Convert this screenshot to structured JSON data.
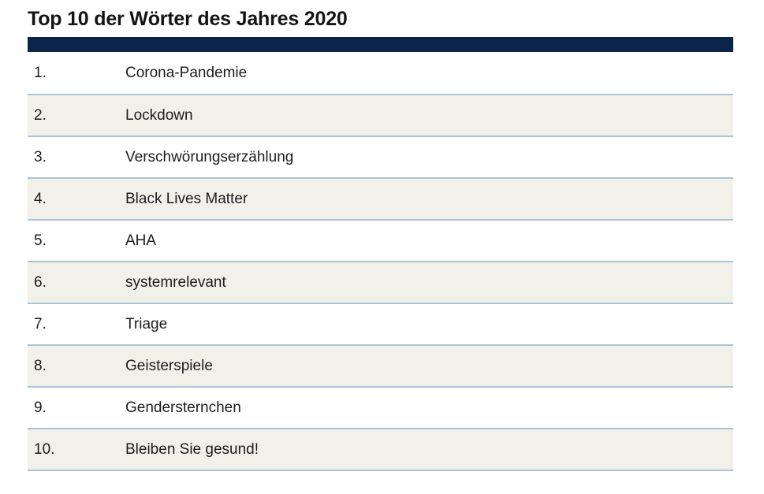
{
  "chart_data": {
    "type": "table",
    "title": "Top 10 der Wörter des Jahres 2020",
    "rows": [
      {
        "rank": "1.",
        "word": "Corona-Pandemie"
      },
      {
        "rank": "2.",
        "word": "Lockdown"
      },
      {
        "rank": "3.",
        "word": "Verschwörungserzählung"
      },
      {
        "rank": "4.",
        "word": "Black Lives Matter"
      },
      {
        "rank": "5.",
        "word": "AHA"
      },
      {
        "rank": "6.",
        "word": "systemrelevant"
      },
      {
        "rank": "7.",
        "word": "Triage"
      },
      {
        "rank": "8.",
        "word": "Geisterspiele"
      },
      {
        "rank": "9.",
        "word": "Gendersternchen"
      },
      {
        "rank": "10.",
        "word": "Bleiben Sie gesund!"
      }
    ]
  },
  "colors": {
    "accent_navy": "#0b2449",
    "row_alt_bg": "#f1f0e9",
    "separator_blue": "#a8c4d6",
    "text": "#1d1d1d"
  }
}
